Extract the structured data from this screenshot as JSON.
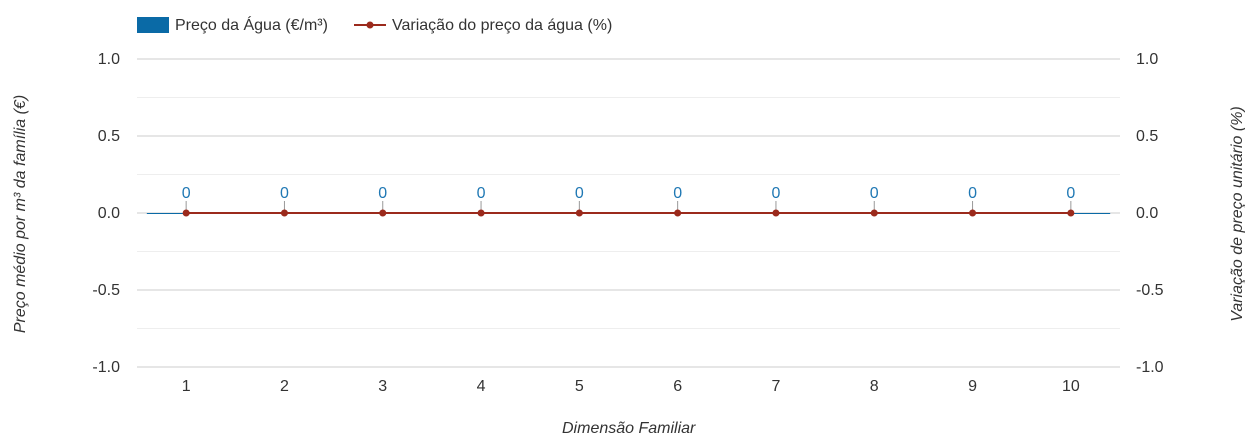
{
  "chart_data": {
    "type": "bar",
    "categories": [
      "1",
      "2",
      "3",
      "4",
      "5",
      "6",
      "7",
      "8",
      "9",
      "10"
    ],
    "series": [
      {
        "name": "Preço da Água (€/m³)",
        "kind": "bar",
        "axis": "left",
        "color": "#0a6aa6",
        "values": [
          0,
          0,
          0,
          0,
          0,
          0,
          0,
          0,
          0,
          0
        ],
        "labels": [
          "0",
          "0",
          "0",
          "0",
          "0",
          "0",
          "0",
          "0",
          "0",
          "0"
        ]
      },
      {
        "name": "Variação do preço da água (%)",
        "kind": "line",
        "axis": "right",
        "color": "#9b2a1c",
        "values": [
          0,
          0,
          0,
          0,
          0,
          0,
          0,
          0,
          0,
          0
        ]
      }
    ],
    "xlabel": "Dimensão Familiar",
    "ylabel": "Preço médio por m³ da família (€)",
    "y2label": "Variação de preço unitário (%)",
    "ylim": [
      -1.0,
      1.0
    ],
    "y2lim": [
      -1.0,
      1.0
    ],
    "yticks": [
      "1.0",
      "0.5",
      "0.0",
      "-0.5",
      "-1.0"
    ],
    "y2ticks": [
      "1.0",
      "0.5",
      "0.0",
      "-0.5",
      "-1.0"
    ],
    "ytick_values": [
      1.0,
      0.5,
      0.0,
      -0.5,
      -1.0
    ],
    "grid": true,
    "legend_position": "top-left",
    "data_label_color": "#1f78b4",
    "grid_color": "#cccccc"
  }
}
